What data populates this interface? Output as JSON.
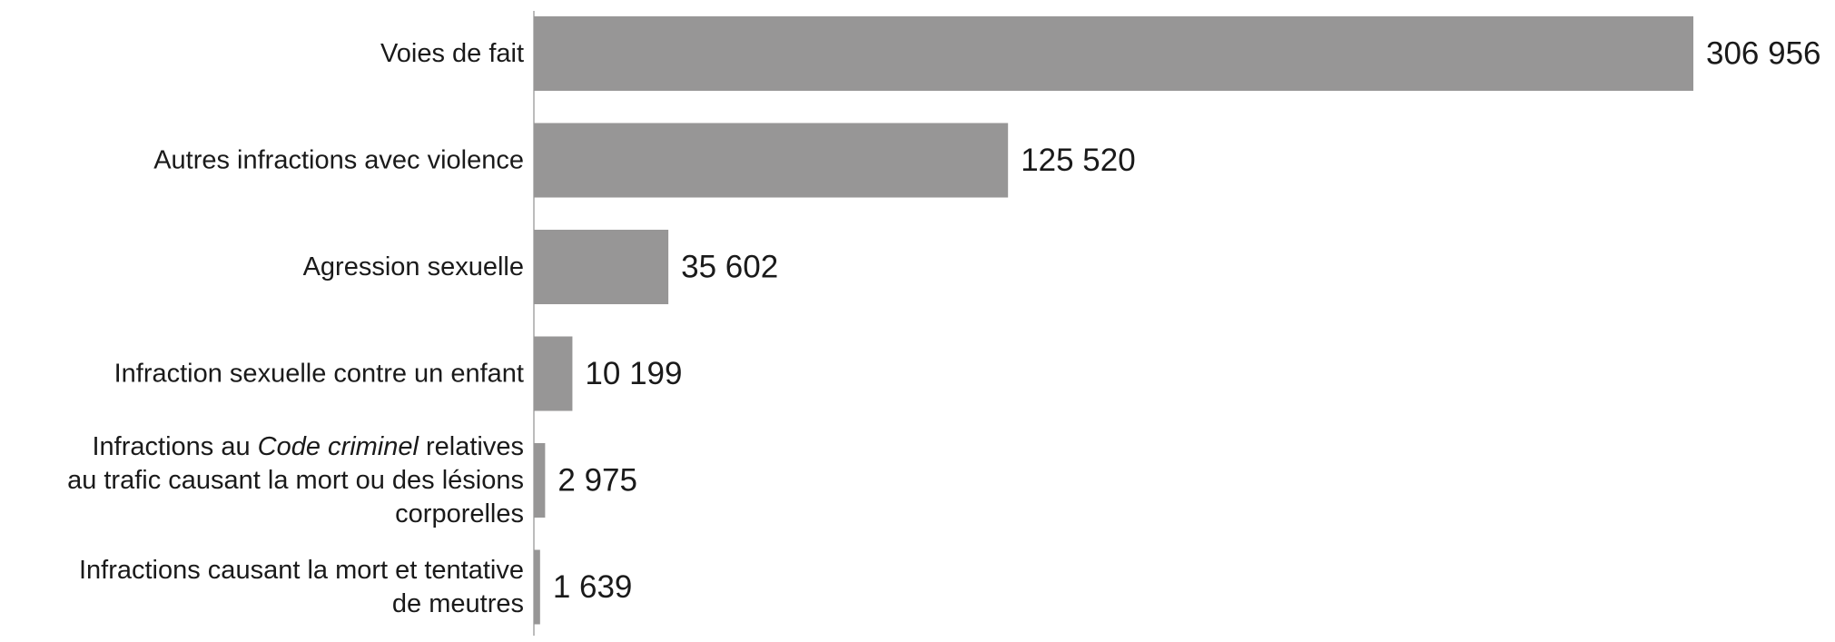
{
  "chart_data": {
    "type": "bar",
    "orientation": "horizontal",
    "categories": [
      {
        "lines": [
          [
            {
              "text": "Voies de fait"
            }
          ]
        ]
      },
      {
        "lines": [
          [
            {
              "text": "Autres infractions avec violence"
            }
          ]
        ]
      },
      {
        "lines": [
          [
            {
              "text": "Agression sexuelle"
            }
          ]
        ]
      },
      {
        "lines": [
          [
            {
              "text": "Infraction sexuelle contre un enfant"
            }
          ]
        ]
      },
      {
        "lines": [
          [
            {
              "text": "Infractions au "
            },
            {
              "text": "Code criminel",
              "italic": true
            },
            {
              "text": " relatives"
            }
          ],
          [
            {
              "text": "au trafic causant la mort ou des lésions"
            }
          ],
          [
            {
              "text": "corporelles"
            }
          ]
        ]
      },
      {
        "lines": [
          [
            {
              "text": "Infractions causant la mort et tentative"
            }
          ],
          [
            {
              "text": "de meutres"
            }
          ]
        ]
      }
    ],
    "values": [
      306956,
      125520,
      35602,
      10199,
      2975,
      1639
    ],
    "value_labels": [
      "306 956",
      "125 520",
      "35 602",
      "10 199",
      "2 975",
      "1 639"
    ],
    "xlim": [
      0,
      306956
    ],
    "bar_color": "#979696",
    "grid": false,
    "legend": "none"
  }
}
